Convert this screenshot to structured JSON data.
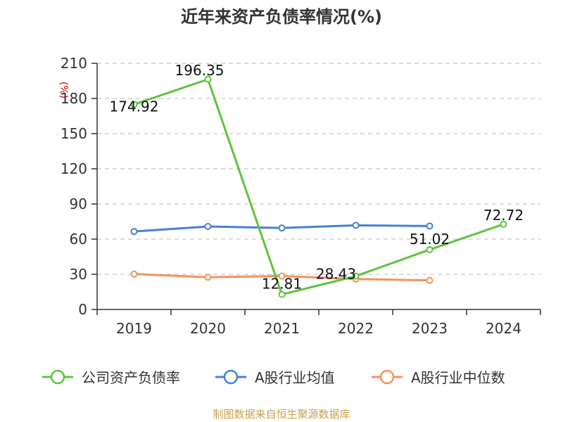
{
  "chart_data": {
    "type": "line",
    "title": "近年来资产负债率情况(%)",
    "ylabel": "(%)",
    "x": [
      "2019",
      "2020",
      "2021",
      "2022",
      "2023",
      "2024"
    ],
    "ylim": [
      0,
      210
    ],
    "yticks": [
      0,
      30,
      60,
      90,
      120,
      150,
      180,
      210
    ],
    "grid": true,
    "legend_position": "bottom",
    "series": [
      {
        "name": "公司资产负债率",
        "color": "#5ec43c",
        "values": [
          174.92,
          196.35,
          12.81,
          28.43,
          51.02,
          72.72
        ],
        "labels": [
          "174.92",
          "196.35",
          "12.81",
          "28.43",
          "51.02",
          "72.72"
        ]
      },
      {
        "name": "A股行业均值",
        "color": "#4a7fd6",
        "values": [
          66.5,
          70.8,
          69.5,
          71.8,
          71.2,
          null
        ]
      },
      {
        "name": "A股行业中位数",
        "color": "#f4915c",
        "values": [
          30.2,
          27.5,
          28.5,
          26.0,
          24.8,
          null
        ]
      }
    ]
  },
  "source": "制图数据来自恒生聚源数据库"
}
